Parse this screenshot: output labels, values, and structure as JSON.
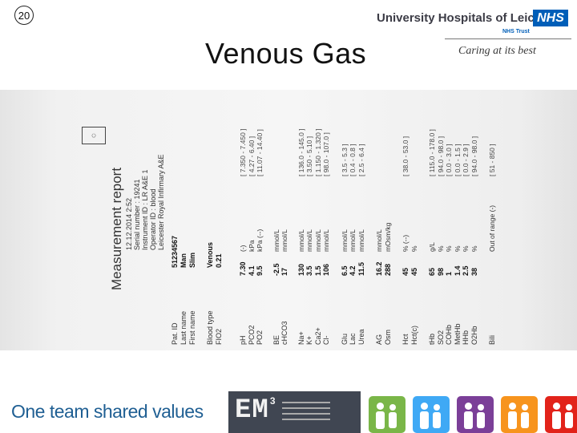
{
  "slide": {
    "number": "20",
    "title": "Venous Gas"
  },
  "branding": {
    "organisation": "University Hospitals of Leicester",
    "nhs_logo": "NHS",
    "trust": "NHS Trust",
    "tagline": "Caring at its best",
    "footer_slogan": "One team shared values",
    "em3_logo": "EM",
    "em3_superscript": "3"
  },
  "report": {
    "title": "Measurement report",
    "header_lines": [
      "12.12.2014  2:52",
      "Serial number : 19241",
      "Instrument ID : LR A&E 1",
      "Operator ID : blood",
      "Leicester Royal Infirmary A&E"
    ],
    "patient": [
      {
        "label": "Pat. ID",
        "value": "51234567"
      },
      {
        "label": "Last name",
        "value": "Man"
      },
      {
        "label": "First name",
        "value": "Slim"
      },
      {
        "label": "",
        "value": ""
      },
      {
        "label": "Blood type",
        "value": "Venous"
      },
      {
        "label": "FIO2",
        "value": "0.21"
      }
    ],
    "results": [
      {
        "label": "pH",
        "value": "7.30",
        "unit": "(-)",
        "range": "[ 7.350 - 7.450 ]"
      },
      {
        "label": "PCO2",
        "value": "4.1",
        "unit": "kPa",
        "range": "[ 4.27 - 6.40 ]"
      },
      {
        "label": "PO2",
        "value": "9.5",
        "unit": "kPa (--)",
        "range": "[ 11.07 - 14.40 ]"
      },
      {
        "label": "BE",
        "value": "-2.5",
        "unit": "mmol/L",
        "range": ""
      },
      {
        "label": "cHCO3",
        "value": "17",
        "unit": "mmol/L",
        "range": ""
      },
      {
        "label": "Na+",
        "value": "130",
        "unit": "mmol/L",
        "range": "[ 136.0 - 145.0 ]"
      },
      {
        "label": "K+",
        "value": "3.5",
        "unit": "mmol/L",
        "range": "[ 3.50 - 5.10 ]"
      },
      {
        "label": "Ca2+",
        "value": "1.5",
        "unit": "mmol/L",
        "range": "[ 1.150 - 1.320 ]"
      },
      {
        "label": "Cl-",
        "value": "106",
        "unit": "mmol/L",
        "range": "[ 98.0 - 107.0 ]"
      },
      {
        "label": "Glu",
        "value": "6.5",
        "unit": "mmol/L",
        "range": "[ 3.5 - 5.3 ]"
      },
      {
        "label": "Lac",
        "value": "4.2",
        "unit": "mmol/L",
        "range": "[ 0.4 - 0.8 ]"
      },
      {
        "label": "Urea",
        "value": "11.5",
        "unit": "mmol/L",
        "range": "[ 2.5 - 6.4 ]"
      },
      {
        "label": "AG",
        "value": "16.2",
        "unit": "mmol/L",
        "range": ""
      },
      {
        "label": "Osm",
        "value": "288",
        "unit": "mOsm/kg",
        "range": ""
      },
      {
        "label": "Hct",
        "value": "45",
        "unit": "% (--)",
        "range": "[ 38.0 - 53.0 ]"
      },
      {
        "label": "Hct(c)",
        "value": "45",
        "unit": "%",
        "range": ""
      },
      {
        "label": "tHb",
        "value": "65",
        "unit": "g/L",
        "range": "[ 115.0 - 178.0 ]"
      },
      {
        "label": "SO2",
        "value": "98",
        "unit": "%",
        "range": "[ 94.0 - 98.0 ]"
      },
      {
        "label": "COHb",
        "value": "1",
        "unit": "%",
        "range": "[ 0.0 - 3.0 ]"
      },
      {
        "label": "MetHb",
        "value": "1.4",
        "unit": "%",
        "range": "[ 0.0 - 1.5 ]"
      },
      {
        "label": "HHb",
        "value": "2.5",
        "unit": "%",
        "range": "[ 0.0 - 2.9 ]"
      },
      {
        "label": "O2Hb",
        "value": "38",
        "unit": "%",
        "range": "[ 94.0 - 98.0 ]"
      },
      {
        "label": "Bili",
        "value": "",
        "unit": "Out of range (-)",
        "range": "[ 51 - 850 ]"
      }
    ]
  },
  "footer_icon_colors": [
    "#7ab648",
    "#3fa9f5",
    "#7b3f98",
    "#f7941d",
    "#e2231a"
  ]
}
